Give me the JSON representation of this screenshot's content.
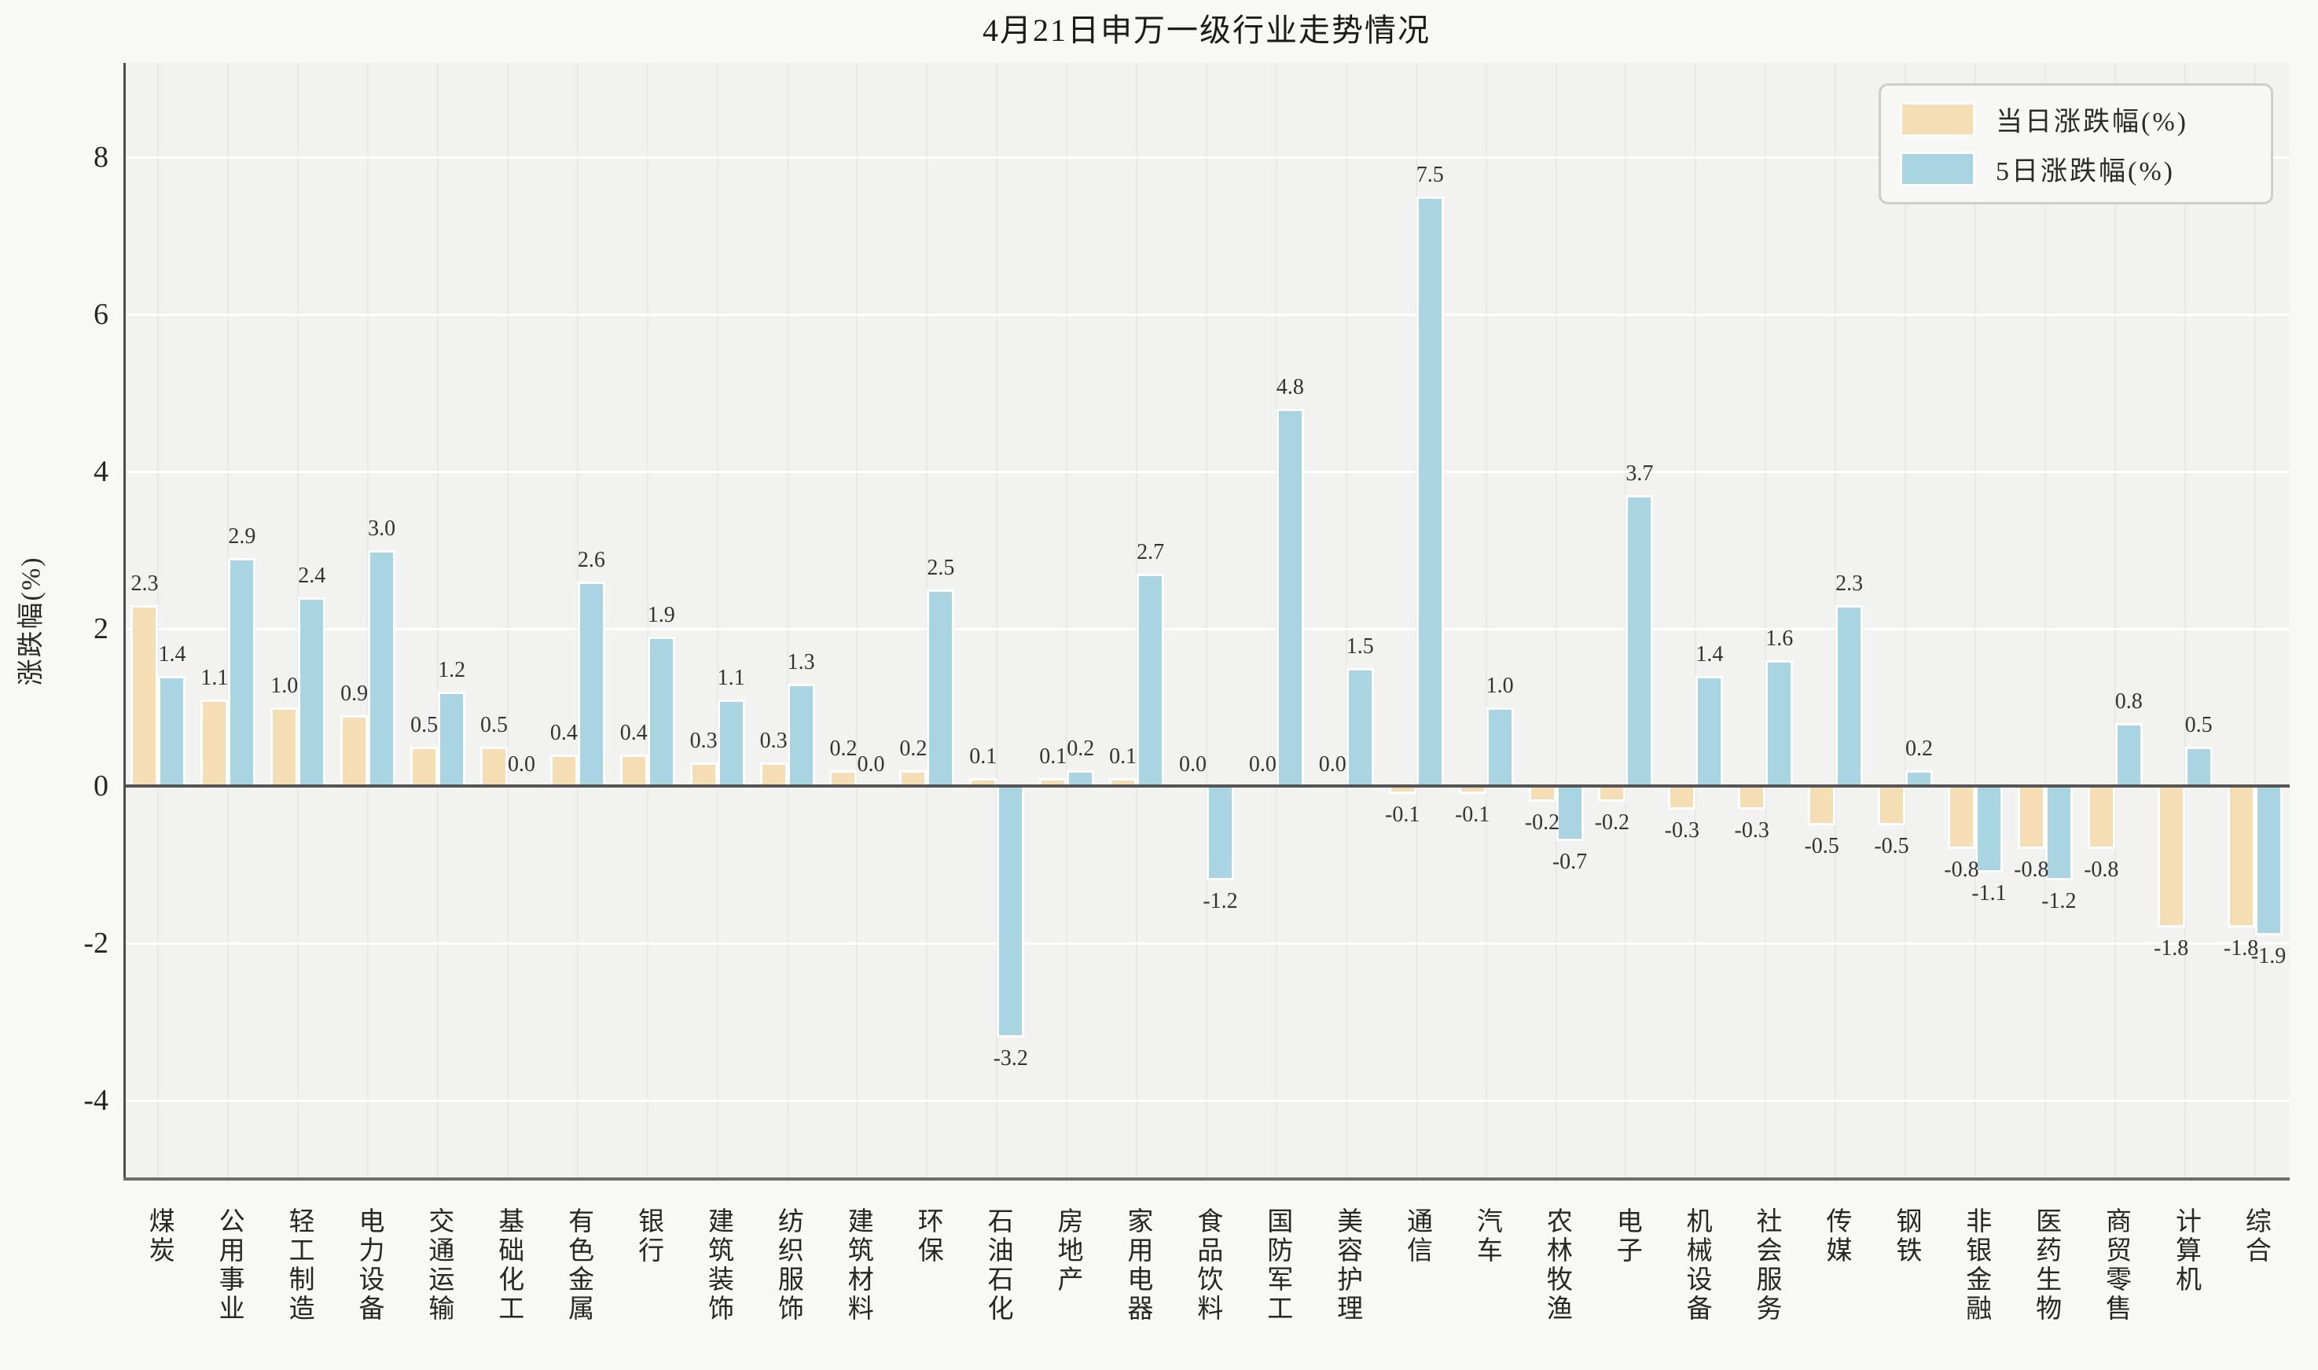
{
  "figure": {
    "title": "4月21日申万一级行业走势情况",
    "ylabel": "涨跌幅(%)"
  },
  "legend": {
    "items": [
      {
        "label": "当日涨跌幅(%)",
        "color": "#F5DEB3"
      },
      {
        "label": "5日涨跌幅(%)",
        "color": "#A9D5E3"
      }
    ],
    "position": "upper right"
  },
  "chart_data": {
    "type": "bar",
    "title": "4月21日申万一级行业走势情况",
    "xlabel": "",
    "ylabel": "涨跌幅(%)",
    "categories": [
      "煤炭",
      "公用事业",
      "轻工制造",
      "电力设备",
      "交通运输",
      "基础化工",
      "有色金属",
      "银行",
      "建筑装饰",
      "纺织服饰",
      "建筑材料",
      "环保",
      "石油石化",
      "房地产",
      "家用电器",
      "食品饮料",
      "国防军工",
      "美容护理",
      "通信",
      "汽车",
      "农林牧渔",
      "电子",
      "机械设备",
      "社会服务",
      "传媒",
      "钢铁",
      "非银金融",
      "医药生物",
      "商贸零售",
      "计算机",
      "综合"
    ],
    "series": [
      {
        "name": "当日涨跌幅(%)",
        "color": "#F5DEB3",
        "values": [
          2.3,
          1.1,
          1.0,
          0.9,
          0.5,
          0.5,
          0.4,
          0.4,
          0.3,
          0.3,
          0.2,
          0.2,
          0.1,
          0.1,
          0.1,
          0.0,
          0.0,
          0.0,
          -0.1,
          -0.1,
          -0.2,
          -0.2,
          -0.3,
          -0.3,
          -0.5,
          -0.5,
          -0.8,
          -0.8,
          -0.8,
          -1.8,
          -1.8
        ]
      },
      {
        "name": "5日涨跌幅(%)",
        "color": "#A9D5E3",
        "values": [
          1.4,
          2.9,
          2.4,
          3.0,
          1.2,
          0.0,
          2.6,
          1.9,
          1.1,
          1.3,
          0.0,
          2.5,
          -3.2,
          0.2,
          2.7,
          -1.2,
          4.8,
          1.5,
          7.5,
          1.0,
          -0.7,
          3.7,
          1.4,
          1.6,
          2.3,
          0.2,
          -1.1,
          -1.2,
          0.8,
          0.5,
          -1.9
        ]
      }
    ],
    "yticks": [
      8,
      6,
      4,
      2,
      0,
      -2,
      -4
    ],
    "ylim": [
      -5.0,
      9.2
    ],
    "grid": "horizontal white gridlines on light gray panel, faint vertical lines at category centers",
    "legend_position": "upper right",
    "bar_label_format": "one decimal place, labels above positive bars and below negative bars"
  },
  "colors": {
    "figure_bg": "#F8F8F7",
    "panel_bg": "#F2F2F0",
    "grid_h": "#FFFFFF",
    "grid_v": "#E8E8E6",
    "spine": "#4D4D4D",
    "zero_line": "#555555",
    "text": "#2B2B2B",
    "daily_bar": "#F5DEB3",
    "five_day_bar": "#A9D5E3",
    "bar_edge": "#FFFFFF",
    "legend_border": "#CDCDCD",
    "legend_bg": "#F7F7F6"
  }
}
